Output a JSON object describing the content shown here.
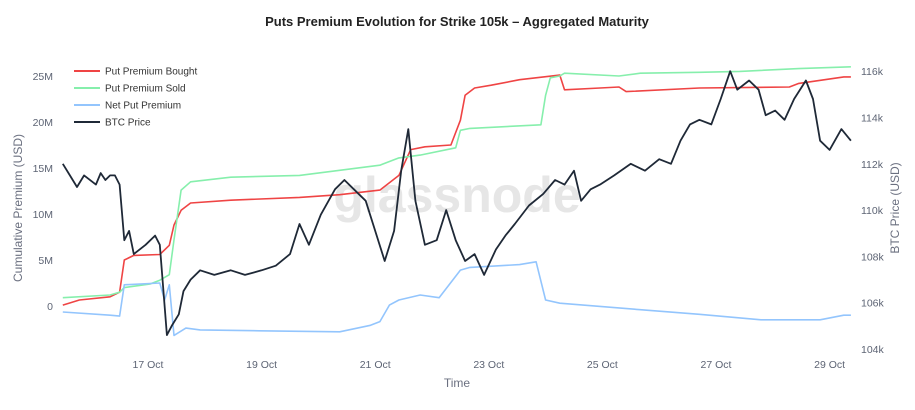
{
  "chart_data": {
    "type": "line",
    "title": "Puts Premium Evolution for Strike 105k – Aggregated Maturity",
    "xlabel": "Time",
    "ylabel": "Cumulative Premium (USD)",
    "y2label": "BTC Price (USD)",
    "watermark": "glassnode",
    "x_ticks": [
      "17 Oct",
      "19 Oct",
      "21 Oct",
      "23 Oct",
      "25 Oct",
      "27 Oct",
      "29 Oct"
    ],
    "x_range": [
      "Oct 15 12:00",
      "Oct 29 09:00"
    ],
    "y_ticks": [
      "0",
      "5M",
      "10M",
      "15M",
      "20M",
      "25M"
    ],
    "y_range_millions": [
      -4,
      27
    ],
    "y2_ticks": [
      "104k",
      "106k",
      "108k",
      "110k",
      "112k",
      "114k",
      "116k"
    ],
    "y2_range_thousands": [
      104,
      116.2
    ],
    "grid": false,
    "legend_position": "top-left",
    "series": [
      {
        "name": "Put Premium Bought",
        "axis": "left",
        "unit": "USD millions",
        "color": "#ef4444",
        "points": [
          [
            "Oct 15 12:00",
            0.1
          ],
          [
            "Oct 15 19:00",
            0.65
          ],
          [
            "Oct 16 08:00",
            1.0
          ],
          [
            "Oct 16 12:00",
            1.5
          ],
          [
            "Oct 16 14:00",
            5.0
          ],
          [
            "Oct 16 18:00",
            5.5
          ],
          [
            "Oct 17 05:00",
            5.6
          ],
          [
            "Oct 17 09:00",
            6.6
          ],
          [
            "Oct 17 11:00",
            8.8
          ],
          [
            "Oct 17 14:00",
            10.4
          ],
          [
            "Oct 17 18:00",
            11.2
          ],
          [
            "Oct 18 11:00",
            11.5
          ],
          [
            "Oct 19 16:00",
            11.8
          ],
          [
            "Oct 20 09:00",
            12.1
          ],
          [
            "Oct 21 02:00",
            12.6
          ],
          [
            "Oct 21 10:00",
            14.2
          ],
          [
            "Oct 21 15:00",
            17.0
          ],
          [
            "Oct 21 21:00",
            17.3
          ],
          [
            "Oct 22 08:00",
            17.5
          ],
          [
            "Oct 22 12:00",
            20.2
          ],
          [
            "Oct 22 14:00",
            22.9
          ],
          [
            "Oct 22 18:00",
            23.7
          ],
          [
            "Oct 23 01:00",
            24.0
          ],
          [
            "Oct 23 13:00",
            24.6
          ],
          [
            "Oct 24 06:00",
            25.1
          ],
          [
            "Oct 24 08:00",
            23.5
          ],
          [
            "Oct 24 23:00",
            23.7
          ],
          [
            "Oct 25 07:00",
            23.8
          ],
          [
            "Oct 25 10:00",
            23.3
          ],
          [
            "Oct 26 17:00",
            23.7
          ],
          [
            "Oct 28 07:00",
            23.8
          ],
          [
            "Oct 28 11:00",
            24.2
          ],
          [
            "Oct 29 06:00",
            24.9
          ],
          [
            "Oct 29 09:00",
            24.9
          ]
        ]
      },
      {
        "name": "Put Premium Sold",
        "axis": "left",
        "unit": "USD millions",
        "color": "#86efac",
        "points": [
          [
            "Oct 15 12:00",
            0.9
          ],
          [
            "Oct 16 08:00",
            1.2
          ],
          [
            "Oct 16 12:00",
            1.5
          ],
          [
            "Oct 16 14:00",
            2.0
          ],
          [
            "Oct 17 01:00",
            2.4
          ],
          [
            "Oct 17 05:00",
            2.8
          ],
          [
            "Oct 17 09:00",
            3.4
          ],
          [
            "Oct 17 11:00",
            7.2
          ],
          [
            "Oct 17 14:00",
            12.6
          ],
          [
            "Oct 17 18:00",
            13.5
          ],
          [
            "Oct 18 11:00",
            14.0
          ],
          [
            "Oct 19 16:00",
            14.2
          ],
          [
            "Oct 21 02:00",
            15.3
          ],
          [
            "Oct 21 10:00",
            16.1
          ],
          [
            "Oct 21 19:00",
            16.4
          ],
          [
            "Oct 22 10:00",
            17.2
          ],
          [
            "Oct 22 12:00",
            19.1
          ],
          [
            "Oct 22 16:00",
            19.3
          ],
          [
            "Oct 23 22:00",
            19.7
          ],
          [
            "Oct 24 00:00",
            22.9
          ],
          [
            "Oct 24 02:00",
            24.8
          ],
          [
            "Oct 24 06:00",
            25.0
          ],
          [
            "Oct 24 08:00",
            25.3
          ],
          [
            "Oct 25 07:00",
            25.0
          ],
          [
            "Oct 25 16:00",
            25.3
          ],
          [
            "Oct 26 17:00",
            25.4
          ],
          [
            "Oct 27 10:00",
            25.5
          ],
          [
            "Oct 28 11:00",
            25.8
          ],
          [
            "Oct 29 09:00",
            26.0
          ]
        ]
      },
      {
        "name": "Net Put Premium",
        "axis": "left",
        "unit": "USD millions",
        "color": "#93c5fd",
        "points": [
          [
            "Oct 15 12:00",
            -0.65
          ],
          [
            "Oct 16 08:00",
            -1.0
          ],
          [
            "Oct 16 12:00",
            -1.1
          ],
          [
            "Oct 16 14:00",
            2.3
          ],
          [
            "Oct 17 05:00",
            2.5
          ],
          [
            "Oct 17 07:00",
            0.65
          ],
          [
            "Oct 17 09:00",
            2.3
          ],
          [
            "Oct 17 11:00",
            -3.2
          ],
          [
            "Oct 17 16:00",
            -2.4
          ],
          [
            "Oct 17 22:00",
            -2.6
          ],
          [
            "Oct 18 23:00",
            -2.7
          ],
          [
            "Oct 20 09:00",
            -2.8
          ],
          [
            "Oct 20 22:00",
            -2.1
          ],
          [
            "Oct 21 02:00",
            -1.7
          ],
          [
            "Oct 21 06:00",
            0.1
          ],
          [
            "Oct 21 10:00",
            0.65
          ],
          [
            "Oct 21 19:00",
            1.2
          ],
          [
            "Oct 22 03:00",
            0.9
          ],
          [
            "Oct 22 12:00",
            3.9
          ],
          [
            "Oct 22 16:00",
            4.2
          ],
          [
            "Oct 23 13:00",
            4.5
          ],
          [
            "Oct 23 20:00",
            4.8
          ],
          [
            "Oct 24 00:00",
            0.65
          ],
          [
            "Oct 24 06:00",
            0.3
          ],
          [
            "Oct 25 16:00",
            -0.4
          ],
          [
            "Oct 26 17:00",
            -0.9
          ],
          [
            "Oct 27 19:00",
            -1.5
          ],
          [
            "Oct 28 20:00",
            -1.5
          ],
          [
            "Oct 29 06:00",
            -1.0
          ],
          [
            "Oct 29 09:00",
            -1.0
          ]
        ]
      },
      {
        "name": "BTC Price",
        "axis": "right",
        "unit": "USD thousands",
        "color": "#1f2937",
        "points": [
          [
            "Oct 15 12:00",
            112.0
          ],
          [
            "Oct 15 15:00",
            111.5
          ],
          [
            "Oct 15 18:00",
            111.0
          ],
          [
            "Oct 15 21:00",
            111.5
          ],
          [
            "Oct 16 02:00",
            111.1
          ],
          [
            "Oct 16 04:00",
            111.6
          ],
          [
            "Oct 16 06:00",
            111.3
          ],
          [
            "Oct 16 08:00",
            111.5
          ],
          [
            "Oct 16 10:00",
            111.5
          ],
          [
            "Oct 16 12:00",
            111.1
          ],
          [
            "Oct 16 14:00",
            108.7
          ],
          [
            "Oct 16 16:00",
            109.1
          ],
          [
            "Oct 16 18:00",
            108.1
          ],
          [
            "Oct 16 23:00",
            108.5
          ],
          [
            "Oct 17 03:00",
            108.9
          ],
          [
            "Oct 17 05:00",
            108.5
          ],
          [
            "Oct 17 08:00",
            104.6
          ],
          [
            "Oct 17 10:00",
            105.0
          ],
          [
            "Oct 17 13:00",
            105.5
          ],
          [
            "Oct 17 15:00",
            106.5
          ],
          [
            "Oct 17 18:00",
            107.0
          ],
          [
            "Oct 17 22:00",
            107.4
          ],
          [
            "Oct 18 04:00",
            107.2
          ],
          [
            "Oct 18 11:00",
            107.4
          ],
          [
            "Oct 18 17:00",
            107.2
          ],
          [
            "Oct 19 00:00",
            107.4
          ],
          [
            "Oct 19 06:00",
            107.6
          ],
          [
            "Oct 19 12:00",
            108.1
          ],
          [
            "Oct 19 16:00",
            109.4
          ],
          [
            "Oct 19 20:00",
            108.5
          ],
          [
            "Oct 20 01:00",
            109.8
          ],
          [
            "Oct 20 07:00",
            110.9
          ],
          [
            "Oct 20 11:00",
            111.3
          ],
          [
            "Oct 20 15:00",
            110.9
          ],
          [
            "Oct 20 20:00",
            110.4
          ],
          [
            "Oct 21 00:00",
            109.1
          ],
          [
            "Oct 21 04:00",
            107.8
          ],
          [
            "Oct 21 08:00",
            109.1
          ],
          [
            "Oct 21 11:00",
            111.7
          ],
          [
            "Oct 21 14:00",
            113.5
          ],
          [
            "Oct 21 17:00",
            110.4
          ],
          [
            "Oct 21 21:00",
            108.5
          ],
          [
            "Oct 22 02:00",
            108.7
          ],
          [
            "Oct 22 06:00",
            110.0
          ],
          [
            "Oct 22 10:00",
            108.7
          ],
          [
            "Oct 22 14:00",
            107.8
          ],
          [
            "Oct 22 18:00",
            108.1
          ],
          [
            "Oct 22 22:00",
            107.2
          ],
          [
            "Oct 23 03:00",
            108.3
          ],
          [
            "Oct 23 07:00",
            108.9
          ],
          [
            "Oct 23 11:00",
            109.4
          ],
          [
            "Oct 23 17:00",
            110.2
          ],
          [
            "Oct 23 23:00",
            110.7
          ],
          [
            "Oct 24 04:00",
            111.3
          ],
          [
            "Oct 24 08:00",
            111.1
          ],
          [
            "Oct 24 12:00",
            111.7
          ],
          [
            "Oct 24 15:00",
            110.4
          ],
          [
            "Oct 24 19:00",
            110.9
          ],
          [
            "Oct 24 23:00",
            111.1
          ],
          [
            "Oct 25 05:00",
            111.5
          ],
          [
            "Oct 25 12:00",
            112.0
          ],
          [
            "Oct 25 18:00",
            111.7
          ],
          [
            "Oct 26 00:00",
            112.2
          ],
          [
            "Oct 26 05:00",
            112.0
          ],
          [
            "Oct 26 09:00",
            113.0
          ],
          [
            "Oct 26 13:00",
            113.7
          ],
          [
            "Oct 26 17:00",
            113.9
          ],
          [
            "Oct 26 22:00",
            113.7
          ],
          [
            "Oct 27 02:00",
            114.8
          ],
          [
            "Oct 27 06:00",
            116.0
          ],
          [
            "Oct 27 09:00",
            115.2
          ],
          [
            "Oct 27 14:00",
            115.6
          ],
          [
            "Oct 27 18:00",
            115.2
          ],
          [
            "Oct 27 21:00",
            114.1
          ],
          [
            "Oct 28 01:00",
            114.3
          ],
          [
            "Oct 28 05:00",
            113.9
          ],
          [
            "Oct 28 09:00",
            114.8
          ],
          [
            "Oct 28 14:00",
            115.6
          ],
          [
            "Oct 28 17:00",
            114.8
          ],
          [
            "Oct 28 20:00",
            113.0
          ],
          [
            "Oct 29 00:00",
            112.6
          ],
          [
            "Oct 29 05:00",
            113.5
          ],
          [
            "Oct 29 09:00",
            113.0
          ]
        ]
      }
    ]
  }
}
